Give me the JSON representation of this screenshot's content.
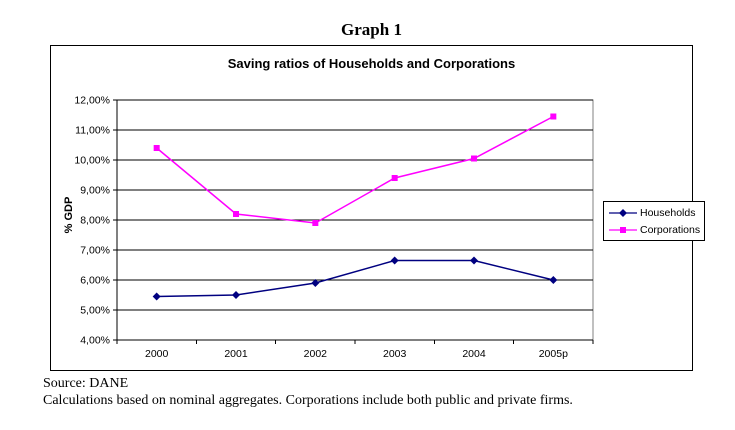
{
  "heading": "Graph 1",
  "source_line1": "Source: DANE",
  "source_line2": "Calculations based on nominal aggregates. Corporations include both public and private firms.",
  "chart_data": {
    "type": "line",
    "title": "Saving ratios of Households and Corporations",
    "xlabel": "",
    "ylabel": "% GDP",
    "categories": [
      "2000",
      "2001",
      "2002",
      "2003",
      "2004",
      "2005p"
    ],
    "series": [
      {
        "name": "Households",
        "color": "#000080",
        "marker": "diamond",
        "values": [
          5.45,
          5.5,
          5.9,
          6.65,
          6.65,
          6.0
        ]
      },
      {
        "name": "Corporations",
        "color": "#FF00FF",
        "marker": "square",
        "values": [
          10.4,
          8.2,
          7.9,
          9.4,
          10.05,
          11.45
        ]
      }
    ],
    "ylim": [
      4,
      12
    ],
    "yticks": [
      {
        "value": 12,
        "label": "12,00%"
      },
      {
        "value": 11,
        "label": "11,00%"
      },
      {
        "value": 10,
        "label": "10,00%"
      },
      {
        "value": 9,
        "label": "9,00%"
      },
      {
        "value": 8,
        "label": "8,00%"
      },
      {
        "value": 7,
        "label": "7,00%"
      },
      {
        "value": 6,
        "label": "6,00%"
      },
      {
        "value": 5,
        "label": "5,00%"
      },
      {
        "value": 4,
        "label": "4,00%"
      }
    ],
    "grid": true,
    "legend_position": "right-outside"
  }
}
